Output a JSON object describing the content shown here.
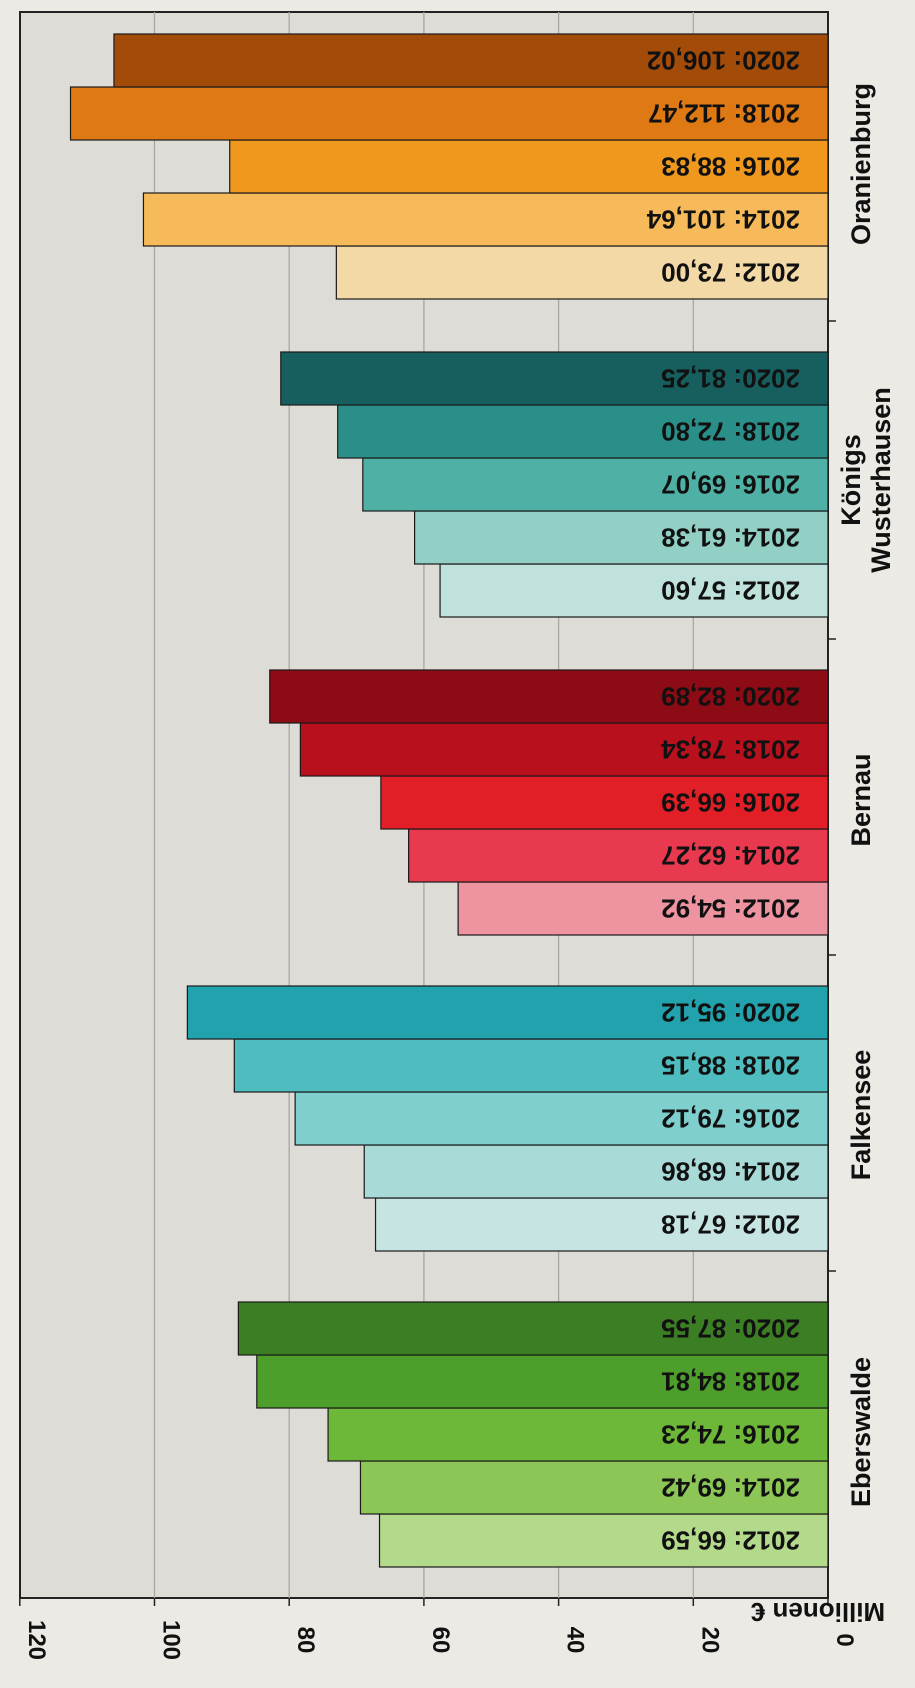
{
  "chart_data": {
    "type": "bar",
    "orientation": "horizontal",
    "rotated": "90deg",
    "ylabel": "Millionen €",
    "ylim": [
      0,
      120
    ],
    "yticks": [
      "0",
      "20",
      "40",
      "60",
      "80",
      "100",
      "120"
    ],
    "grid": true,
    "categories": [
      "Eberswalde",
      "Falkensee",
      "Bernau",
      "Königs\nWusterhausen",
      "Oranienburg"
    ],
    "groups": [
      {
        "name": "Eberswalde",
        "bars": [
          {
            "year": "2012",
            "value": 66.59,
            "label": "2012: 66,59",
            "color": "#b3d98a"
          },
          {
            "year": "2014",
            "value": 69.42,
            "label": "2014: 69,42",
            "color": "#8cc656"
          },
          {
            "year": "2016",
            "value": 74.23,
            "label": "2016: 74,23",
            "color": "#6db838"
          },
          {
            "year": "2018",
            "value": 84.81,
            "label": "2018: 84,81",
            "color": "#4e9e2c"
          },
          {
            "year": "2020",
            "value": 87.55,
            "label": "2020: 87,55",
            "color": "#3c7e24"
          }
        ]
      },
      {
        "name": "Falkensee",
        "bars": [
          {
            "year": "2012",
            "value": 67.18,
            "label": "2012: 67,18",
            "color": "#c5e4e2"
          },
          {
            "year": "2014",
            "value": 68.86,
            "label": "2014: 68,86",
            "color": "#a8dad8"
          },
          {
            "year": "2016",
            "value": 79.12,
            "label": "2016: 79,12",
            "color": "#7ecfcd"
          },
          {
            "year": "2018",
            "value": 88.15,
            "label": "2018: 88,15",
            "color": "#4fbcc0"
          },
          {
            "year": "2020",
            "value": 95.12,
            "label": "2020: 95,12",
            "color": "#22a2ad"
          }
        ]
      },
      {
        "name": "Bernau",
        "bars": [
          {
            "year": "2012",
            "value": 54.92,
            "label": "2012: 54,92",
            "color": "#ee93a0"
          },
          {
            "year": "2014",
            "value": 62.27,
            "label": "2014: 62,27",
            "color": "#e8394e"
          },
          {
            "year": "2016",
            "value": 66.39,
            "label": "2016: 66,39",
            "color": "#e21f26"
          },
          {
            "year": "2018",
            "value": 78.34,
            "label": "2018: 78,34",
            "color": "#b8101d"
          },
          {
            "year": "2020",
            "value": 82.89,
            "label": "2020: 82,89",
            "color": "#8c0b14"
          }
        ]
      },
      {
        "name": "Königs Wusterhausen",
        "bars": [
          {
            "year": "2012",
            "value": 57.6,
            "label": "2012: 57,60",
            "color": "#bfe3dc"
          },
          {
            "year": "2014",
            "value": 61.38,
            "label": "2014: 61,38",
            "color": "#92d0c6"
          },
          {
            "year": "2016",
            "value": 69.07,
            "label": "2016: 69,07",
            "color": "#4fb1a6"
          },
          {
            "year": "2018",
            "value": 72.8,
            "label": "2018: 72,80",
            "color": "#2a8f89"
          },
          {
            "year": "2020",
            "value": 81.25,
            "label": "2020: 81,25",
            "color": "#175f5e"
          }
        ]
      },
      {
        "name": "Oranienburg",
        "bars": [
          {
            "year": "2012",
            "value": 73.0,
            "label": "2012: 73,00",
            "color": "#f3d9a6"
          },
          {
            "year": "2014",
            "value": 101.64,
            "label": "2014: 101,64",
            "color": "#f6ba5a"
          },
          {
            "year": "2016",
            "value": 88.83,
            "label": "2016: 88,83",
            "color": "#f0981e"
          },
          {
            "year": "2018",
            "value": 112.47,
            "label": "2018: 112,47",
            "color": "#de7914"
          },
          {
            "year": "2020",
            "value": 106.02,
            "label": "2020: 106,02",
            "color": "#a34c0a"
          }
        ]
      }
    ]
  }
}
